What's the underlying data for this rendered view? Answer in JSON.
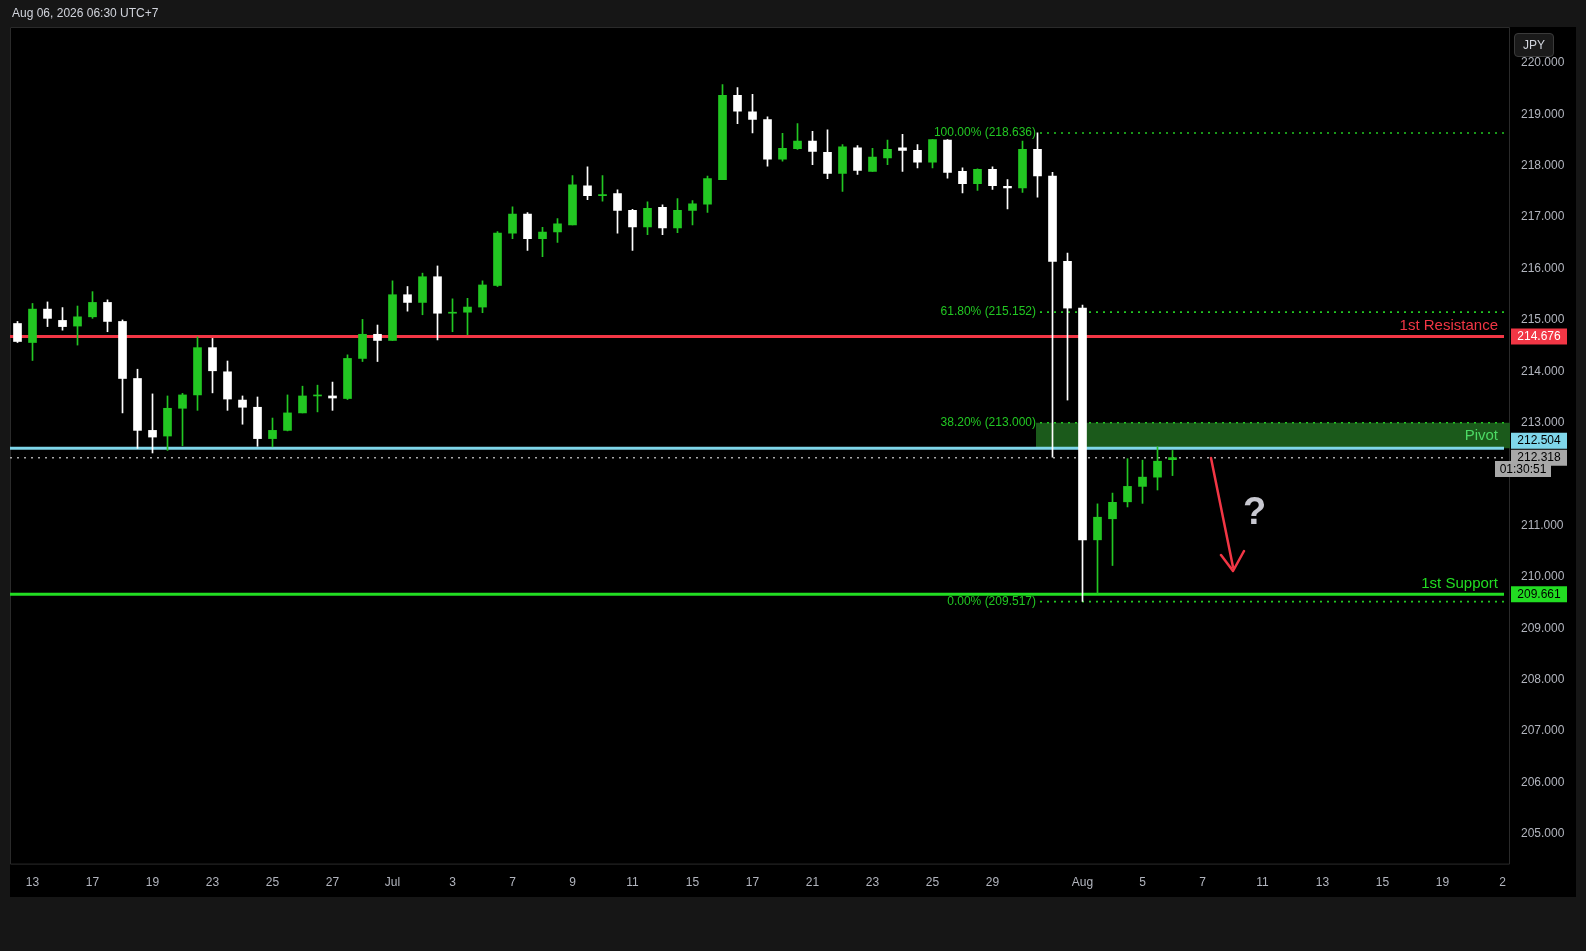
{
  "chart_data": {
    "type": "candlestick",
    "categories": [
      null,
      "13",
      null,
      null,
      null,
      "17",
      null,
      null,
      null,
      "19",
      null,
      null,
      null,
      "23",
      null,
      null,
      null,
      "25",
      null,
      null,
      null,
      "27",
      null,
      null,
      null,
      "Jul",
      null,
      null,
      null,
      "3",
      null,
      null,
      null,
      "7",
      null,
      null,
      null,
      "9",
      null,
      null,
      null,
      "11",
      null,
      null,
      null,
      "15",
      null,
      null,
      null,
      "17",
      null,
      null,
      null,
      "21",
      null,
      null,
      null,
      "23",
      null,
      null,
      null,
      "25",
      null,
      null,
      null,
      "29",
      null,
      null,
      null,
      null,
      null,
      "Aug",
      null,
      null,
      null,
      "5",
      null,
      null,
      null,
      "7",
      null,
      null,
      null,
      "11",
      null,
      null,
      null,
      "13",
      null,
      null,
      null,
      "15",
      null,
      null,
      null,
      "19",
      null,
      null,
      null,
      "2"
    ],
    "ohlc": [
      [
        214.93,
        214.97,
        214.56,
        214.58
      ],
      [
        214.56,
        215.32,
        214.21,
        215.21
      ],
      [
        215.21,
        215.35,
        214.87,
        215.03
      ],
      [
        214.99,
        215.24,
        214.8,
        214.87
      ],
      [
        214.88,
        215.27,
        214.51,
        215.06
      ],
      [
        215.06,
        215.55,
        215.03,
        215.34
      ],
      [
        215.34,
        215.39,
        214.77,
        214.97
      ],
      [
        214.97,
        215.0,
        213.19,
        213.86
      ],
      [
        213.86,
        214.04,
        212.5,
        212.85
      ],
      [
        212.85,
        213.56,
        212.41,
        212.72
      ],
      [
        212.74,
        213.52,
        212.46,
        213.28
      ],
      [
        213.28,
        213.57,
        212.55,
        213.54
      ],
      [
        213.54,
        214.67,
        213.24,
        214.46
      ],
      [
        214.46,
        214.64,
        213.58,
        214.01
      ],
      [
        213.99,
        214.2,
        213.24,
        213.46
      ],
      [
        213.44,
        213.52,
        212.97,
        213.3
      ],
      [
        213.3,
        213.5,
        212.54,
        212.69
      ],
      [
        212.69,
        213.09,
        212.53,
        212.85
      ],
      [
        212.85,
        213.54,
        212.84,
        213.19
      ],
      [
        213.19,
        213.71,
        213.19,
        213.52
      ],
      [
        213.52,
        213.73,
        213.21,
        213.52
      ],
      [
        213.52,
        213.79,
        213.24,
        213.48
      ],
      [
        213.47,
        214.32,
        213.45,
        214.25
      ],
      [
        214.25,
        215.01,
        214.19,
        214.72
      ],
      [
        214.72,
        214.9,
        214.19,
        214.6
      ],
      [
        214.6,
        215.76,
        214.6,
        215.49
      ],
      [
        215.49,
        215.65,
        215.17,
        215.34
      ],
      [
        215.34,
        215.91,
        215.1,
        215.84
      ],
      [
        215.84,
        216.05,
        214.61,
        215.13
      ],
      [
        215.13,
        215.41,
        214.77,
        215.15
      ],
      [
        215.15,
        215.42,
        214.71,
        215.25
      ],
      [
        215.25,
        215.76,
        215.14,
        215.68
      ],
      [
        215.67,
        216.72,
        215.65,
        216.69
      ],
      [
        216.69,
        217.2,
        216.58,
        217.06
      ],
      [
        217.06,
        217.09,
        216.35,
        216.58
      ],
      [
        216.58,
        216.8,
        216.23,
        216.71
      ],
      [
        216.71,
        216.97,
        216.51,
        216.87
      ],
      [
        216.85,
        217.81,
        216.85,
        217.63
      ],
      [
        217.61,
        217.98,
        217.34,
        217.42
      ],
      [
        217.42,
        217.81,
        217.31,
        217.44
      ],
      [
        217.46,
        217.53,
        216.69,
        217.13
      ],
      [
        217.13,
        217.15,
        216.35,
        216.81
      ],
      [
        216.81,
        217.3,
        216.66,
        217.17
      ],
      [
        217.19,
        217.24,
        216.66,
        216.79
      ],
      [
        216.79,
        217.36,
        216.7,
        217.13
      ],
      [
        217.13,
        217.32,
        216.85,
        217.26
      ],
      [
        217.25,
        217.8,
        217.09,
        217.75
      ],
      [
        217.73,
        219.58,
        217.73,
        219.37
      ],
      [
        219.37,
        219.52,
        218.82,
        219.06
      ],
      [
        219.05,
        219.39,
        218.64,
        218.9
      ],
      [
        218.9,
        218.95,
        217.99,
        218.13
      ],
      [
        218.13,
        218.63,
        218.09,
        218.34
      ],
      [
        218.33,
        218.82,
        218.32,
        218.48
      ],
      [
        218.48,
        218.67,
        218.02,
        218.28
      ],
      [
        218.26,
        218.7,
        217.75,
        217.85
      ],
      [
        217.85,
        218.41,
        217.5,
        218.37
      ],
      [
        218.35,
        218.39,
        217.83,
        217.91
      ],
      [
        217.89,
        218.34,
        217.89,
        218.17
      ],
      [
        218.15,
        218.5,
        218.02,
        218.32
      ],
      [
        218.35,
        218.61,
        217.89,
        218.3
      ],
      [
        218.3,
        218.41,
        217.96,
        218.07
      ],
      [
        218.07,
        218.51,
        217.96,
        218.51
      ],
      [
        218.5,
        218.51,
        217.76,
        217.87
      ],
      [
        217.89,
        217.96,
        217.47,
        217.65
      ],
      [
        217.65,
        217.94,
        217.52,
        217.93
      ],
      [
        217.93,
        217.98,
        217.54,
        217.61
      ],
      [
        217.6,
        217.73,
        217.16,
        217.57
      ],
      [
        217.57,
        218.48,
        217.48,
        218.32
      ],
      [
        218.32,
        218.64,
        217.39,
        217.8
      ],
      [
        217.8,
        217.87,
        212.33,
        216.14
      ],
      [
        216.14,
        216.3,
        213.44,
        215.23
      ],
      [
        215.23,
        215.29,
        209.52,
        210.72
      ],
      [
        210.72,
        211.42,
        209.67,
        211.16
      ],
      [
        211.13,
        211.63,
        210.22,
        211.45
      ],
      [
        211.46,
        212.3,
        211.36,
        211.76
      ],
      [
        211.76,
        212.27,
        211.43,
        211.94
      ],
      [
        211.94,
        212.53,
        211.69,
        212.25
      ],
      [
        212.28,
        212.46,
        211.97,
        212.32
      ],
      null,
      null,
      null,
      null,
      null,
      null,
      null,
      null,
      null,
      null,
      null,
      null,
      null,
      null,
      null,
      null,
      null,
      null,
      null,
      null,
      null,
      null
    ],
    "colors": [
      "#ffffff",
      "#22c722",
      "#ffffff",
      "#ffffff",
      "#22c722",
      "#22c722",
      "#ffffff",
      "#ffffff",
      "#ffffff",
      "#ffffff",
      "#22c722",
      "#22c722",
      "#22c722",
      "#ffffff",
      "#ffffff",
      "#ffffff",
      "#ffffff",
      "#22c722",
      "#22c722",
      "#22c722",
      "#22c722",
      "#ffffff",
      "#22c722",
      "#22c722",
      "#ffffff",
      "#22c722",
      "#ffffff",
      "#22c722",
      "#ffffff",
      "#22c722",
      "#22c722",
      "#22c722",
      "#22c722",
      "#22c722",
      "#ffffff",
      "#22c722",
      "#22c722",
      "#22c722",
      "#ffffff",
      "#22c722",
      "#ffffff",
      "#ffffff",
      "#22c722",
      "#ffffff",
      "#22c722",
      "#22c722",
      "#22c722",
      "#22c722",
      "#ffffff",
      "#ffffff",
      "#ffffff",
      "#22c722",
      "#22c722",
      "#ffffff",
      "#ffffff",
      "#22c722",
      "#ffffff",
      "#22c722",
      "#22c722",
      "#ffffff",
      "#ffffff",
      "#22c722",
      "#ffffff",
      "#ffffff",
      "#22c722",
      "#ffffff",
      "#ffffff",
      "#22c722",
      "#ffffff",
      "#ffffff",
      "#ffffff",
      "#ffffff",
      "#22c722",
      "#22c722",
      "#22c722",
      "#22c722",
      "#22c722",
      "#22c722",
      null,
      null,
      null,
      null,
      null,
      null,
      null,
      null,
      null,
      null,
      null,
      null,
      null,
      null,
      null,
      null,
      null,
      null,
      null,
      null,
      null,
      null
    ],
    "ylim": [
      204.4,
      220.7
    ],
    "yticks": [
      {
        "value": 205,
        "label": "205.000"
      },
      {
        "value": 206,
        "label": "206.000"
      },
      {
        "value": 207,
        "label": "207.000"
      },
      {
        "value": 208,
        "label": "208.000"
      },
      {
        "value": 209,
        "label": "209.000"
      },
      {
        "value": 210,
        "label": "210.000"
      },
      {
        "value": 211,
        "label": "211.000"
      },
      {
        "value": 213,
        "label": "213.000"
      },
      {
        "value": 214,
        "label": "214.000"
      },
      {
        "value": 215,
        "label": "215.000"
      },
      {
        "value": 216,
        "label": "216.000"
      },
      {
        "value": 217,
        "label": "217.000"
      },
      {
        "value": 218,
        "label": "218.000"
      },
      {
        "value": 219,
        "label": "219.000"
      },
      {
        "value": 220,
        "label": "220.000"
      }
    ],
    "ref_lines": [
      {
        "axis": "y",
        "value": 214.676,
        "label": "1st Resistance",
        "color": "#f23645"
      },
      {
        "axis": "y",
        "value": 212.504,
        "color": "#7fd6ea"
      },
      {
        "axis": "y",
        "value": 209.661,
        "label": "1st Support",
        "color": "#22dd22"
      },
      {
        "axis": "y",
        "value": 212.318,
        "color": "#a8a8a8",
        "line_style": "dotted"
      },
      {
        "axis": "y",
        "value": 218.636,
        "label": "100.00% (218.636)",
        "color": "#22c722",
        "line_style": "dotted"
      },
      {
        "axis": "y",
        "value": 215.152,
        "label": "61.80% (215.152)",
        "color": "#22c722",
        "line_style": "dotted"
      },
      {
        "axis": "y",
        "value": 213.0,
        "label": "38.20% (213.000)",
        "color": "#22c722",
        "line_style": "dotted"
      },
      {
        "axis": "y",
        "value": 209.517,
        "label": "0.00% (209.517)",
        "color": "#22c722",
        "line_style": "dotted"
      }
    ],
    "bands": [
      {
        "axis": "y",
        "from": 212.504,
        "to": 213.0,
        "label": "Pivot",
        "color": "#1b5a1b"
      }
    ],
    "annotations": [
      "Aug 06, 2026 06:30 UTC+7",
      "JPY",
      "?",
      "01:30:51",
      "214.676",
      "212.504",
      "212.318",
      "209.661"
    ]
  }
}
